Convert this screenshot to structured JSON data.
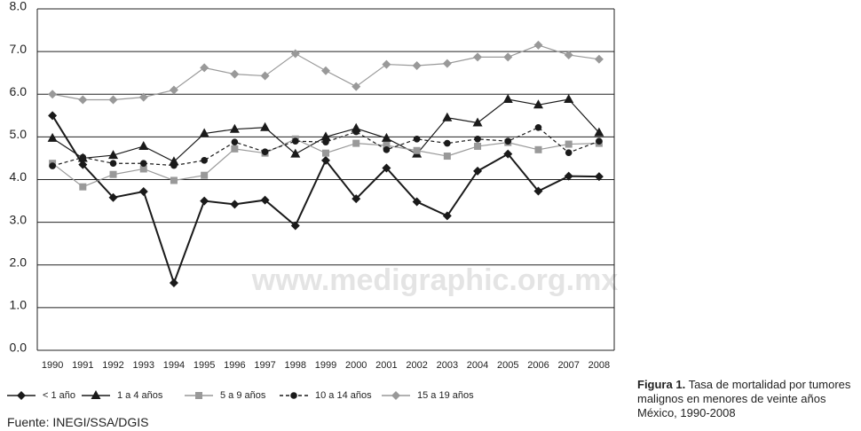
{
  "chart_data": {
    "type": "line",
    "categories": [
      "1990",
      "1991",
      "1992",
      "1993",
      "1994",
      "1995",
      "1996",
      "1997",
      "1998",
      "1999",
      "2000",
      "2001",
      "2002",
      "2003",
      "2004",
      "2005",
      "2006",
      "2007",
      "2008"
    ],
    "series": [
      {
        "name": "< 1 año",
        "color": "#1a1a1a",
        "marker": "diamond",
        "dash": false,
        "values": [
          5.5,
          4.35,
          3.58,
          3.72,
          1.58,
          3.5,
          3.42,
          3.52,
          2.92,
          4.45,
          3.55,
          4.27,
          3.48,
          3.15,
          4.2,
          4.6,
          3.73,
          4.08,
          4.07
        ]
      },
      {
        "name": "1 a 4 años",
        "color": "#1a1a1a",
        "marker": "triangle",
        "dash": false,
        "values": [
          4.97,
          4.5,
          4.57,
          4.78,
          4.42,
          5.08,
          5.18,
          5.22,
          4.6,
          5.0,
          5.2,
          4.97,
          4.6,
          5.45,
          5.33,
          5.88,
          5.75,
          5.88,
          5.1
        ]
      },
      {
        "name": "5 a 9 años",
        "color": "#999999",
        "marker": "square",
        "dash": false,
        "values": [
          4.38,
          3.83,
          4.12,
          4.25,
          3.98,
          4.1,
          4.72,
          4.62,
          4.95,
          4.62,
          4.85,
          4.8,
          4.68,
          4.55,
          4.78,
          4.87,
          4.7,
          4.83,
          4.85
        ]
      },
      {
        "name": "10 a 14 años",
        "color": "#1a1a1a",
        "marker": "circle",
        "dash": true,
        "values": [
          4.32,
          4.52,
          4.38,
          4.38,
          4.33,
          4.45,
          4.88,
          4.65,
          4.9,
          4.88,
          5.12,
          4.7,
          4.95,
          4.85,
          4.95,
          4.9,
          5.22,
          4.63,
          4.9
        ]
      },
      {
        "name": "15 a 19 años",
        "color": "#999999",
        "marker": "diamond",
        "dash": false,
        "values": [
          6.0,
          5.87,
          5.87,
          5.93,
          6.1,
          6.62,
          6.47,
          6.43,
          6.95,
          6.55,
          6.18,
          6.7,
          6.67,
          6.72,
          6.87,
          6.87,
          7.15,
          6.92,
          6.82
        ]
      }
    ],
    "ylim": [
      0,
      8
    ],
    "yticks": [
      {
        "value": 0,
        "label": "0.0"
      },
      {
        "value": 1,
        "label": "1.0"
      },
      {
        "value": 2,
        "label": "2.0"
      },
      {
        "value": 3,
        "label": "3.0"
      },
      {
        "value": 4,
        "label": "4.0"
      },
      {
        "value": 5,
        "label": "5.0"
      },
      {
        "value": 6,
        "label": "6.0"
      },
      {
        "value": 7,
        "label": "7.0"
      },
      {
        "value": 8,
        "label": "8.0"
      }
    ],
    "grid": true,
    "watermark": "www.medigraphic.org.mx",
    "source": "Fuente: INEGI/SSA/DGIS",
    "caption_label": "Figura 1.",
    "caption_text": "Tasa de mortalidad por tumores malignos en menores de veinte años México, 1990-2008"
  }
}
